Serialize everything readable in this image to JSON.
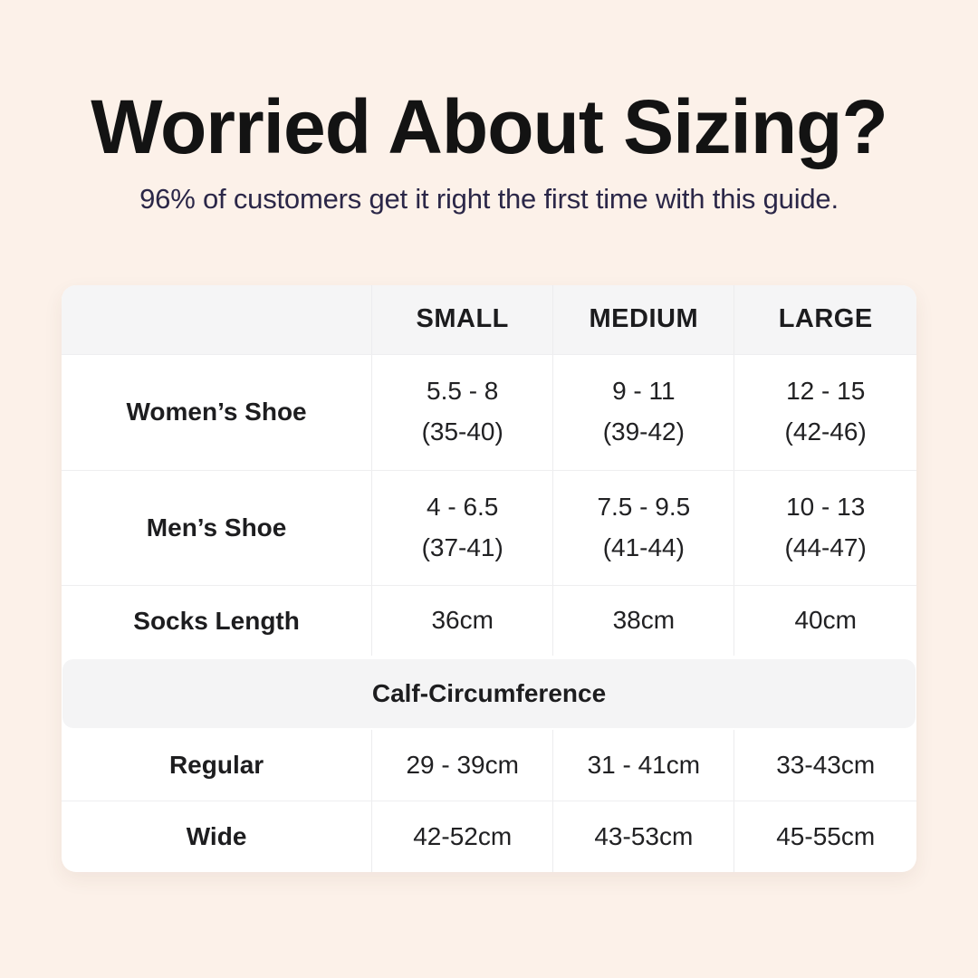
{
  "page": {
    "background_color": "#fcf1e9",
    "card_color": "#ffffff",
    "band_color": "#f5f5f6",
    "title_color": "#131313",
    "subtitle_color": "#2b2748"
  },
  "header": {
    "title": "Worried About Sizing?",
    "subtitle": "96% of customers get it right the first time with this guide."
  },
  "table": {
    "columns": [
      "",
      "SMALL",
      "MEDIUM",
      "LARGE"
    ],
    "rows": [
      {
        "label": "Women’s Shoe",
        "cells": [
          {
            "l1": "5.5 - 8",
            "l2": "(35-40)"
          },
          {
            "l1": "9 - 11",
            "l2": "(39-42)"
          },
          {
            "l1": "12 - 15",
            "l2": "(42-46)"
          }
        ]
      },
      {
        "label": "Men’s Shoe",
        "cells": [
          {
            "l1": "4 - 6.5",
            "l2": "(37-41)"
          },
          {
            "l1": "7.5 - 9.5",
            "l2": "(41-44)"
          },
          {
            "l1": "10 - 13",
            "l2": "(44-47)"
          }
        ]
      },
      {
        "label": "Socks Length",
        "cells": [
          {
            "l1": "36cm"
          },
          {
            "l1": "38cm"
          },
          {
            "l1": "40cm"
          }
        ]
      }
    ],
    "section": {
      "label": "Calf-Circumference"
    },
    "section_rows": [
      {
        "label": "Regular",
        "cells": [
          {
            "l1": "29 - 39cm"
          },
          {
            "l1": "31 - 41cm"
          },
          {
            "l1": "33-43cm"
          }
        ]
      },
      {
        "label": "Wide",
        "cells": [
          {
            "l1": "42-52cm"
          },
          {
            "l1": "43-53cm"
          },
          {
            "l1": "45-55cm"
          }
        ]
      }
    ]
  }
}
